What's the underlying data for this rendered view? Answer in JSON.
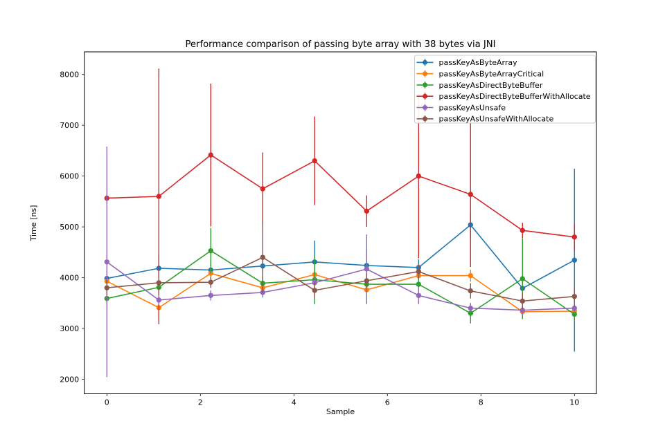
{
  "chart_data": {
    "type": "line",
    "title": "Performance comparison of passing byte array with 38 bytes via JNI",
    "xlabel": "Sample",
    "ylabel": "Time [ns]",
    "xlim": [
      -0.483,
      10.47
    ],
    "ylim": [
      1714,
      8445
    ],
    "x_ticks": [
      0,
      2,
      4,
      6,
      8,
      10
    ],
    "y_ticks": [
      2000,
      3000,
      4000,
      5000,
      6000,
      7000,
      8000
    ],
    "grid": false,
    "legend_position": "upper right",
    "marker": "circle",
    "error_bars": true,
    "x": [
      0,
      1.111,
      2.222,
      3.333,
      4.444,
      5.556,
      6.667,
      7.778,
      8.889,
      10
    ],
    "series": [
      {
        "name": "passKeyAsByteArray",
        "color": "#1f77b4",
        "values": [
          3985,
          4185,
          4150,
          4230,
          4310,
          4240,
          4200,
          5040,
          3790,
          4345
        ],
        "errors": [
          150,
          260,
          160,
          160,
          420,
          330,
          160,
          240,
          160,
          1800
        ]
      },
      {
        "name": "passKeyAsByteArrayCritical",
        "color": "#ff7f0e",
        "values": [
          3930,
          3410,
          4085,
          3800,
          4060,
          3760,
          4040,
          4040,
          3330,
          3340
        ],
        "errors": [
          140,
          230,
          140,
          140,
          150,
          120,
          120,
          120,
          120,
          120
        ]
      },
      {
        "name": "passKeyAsDirectByteBuffer",
        "color": "#2ca02c",
        "values": [
          3590,
          3810,
          4530,
          3890,
          3960,
          3870,
          3870,
          3300,
          3980,
          3280
        ],
        "errors": [
          140,
          140,
          450,
          140,
          480,
          390,
          140,
          200,
          795,
          120
        ]
      },
      {
        "name": "passKeyAsDirectByteBufferWithAllocate",
        "color": "#d62728",
        "values": [
          5565,
          5600,
          6415,
          5750,
          6300,
          5310,
          6000,
          5640,
          4930,
          4800
        ],
        "errors": [
          80,
          2515,
          1405,
          715,
          870,
          310,
          1620,
          1430,
          150,
          270
        ]
      },
      {
        "name": "passKeyAsUnsafe",
        "color": "#9467bd",
        "values": [
          4310,
          3560,
          3650,
          3710,
          3900,
          4170,
          3650,
          3400,
          3360,
          3400
        ],
        "errors": [
          2270,
          100,
          100,
          100,
          100,
          680,
          170,
          100,
          110,
          100
        ]
      },
      {
        "name": "passKeyAsUnsafeWithAllocate",
        "color": "#8c564b",
        "values": [
          3800,
          3900,
          3910,
          4400,
          3750,
          3940,
          4120,
          3740,
          3540,
          3630
        ],
        "errors": [
          150,
          110,
          110,
          700,
          150,
          150,
          150,
          150,
          160,
          200
        ]
      }
    ]
  }
}
